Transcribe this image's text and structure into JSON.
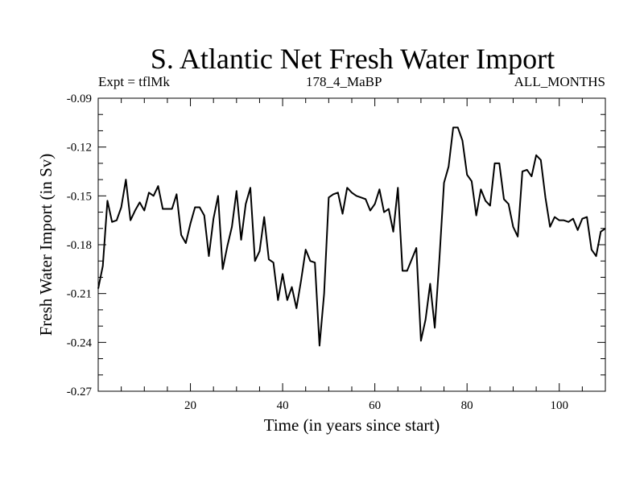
{
  "chart_data": {
    "type": "line",
    "title": "S. Atlantic Net Fresh Water Import",
    "subtitle_left": "Expt = tflMk",
    "subtitle_center": "178_4_MaBP",
    "subtitle_right": "ALL_MONTHS",
    "xlabel": "Time (in years since start)",
    "ylabel": "Fresh Water Import (in Sv)",
    "xlim": [
      0,
      110
    ],
    "ylim": [
      -0.27,
      -0.09
    ],
    "x_ticks": [
      20,
      40,
      60,
      80,
      100
    ],
    "x_tick_labels": [
      "20",
      "40",
      "60",
      "80",
      "100"
    ],
    "y_ticks": [
      -0.27,
      -0.24,
      -0.21,
      -0.18,
      -0.15,
      -0.12,
      -0.09
    ],
    "y_tick_labels": [
      "-0.27",
      "-0.24",
      "-0.21",
      "-0.18",
      "-0.15",
      "-0.12",
      "-0.09"
    ],
    "grid": false,
    "series": [
      {
        "name": "Fresh Water Import",
        "x": [
          0,
          1,
          2,
          3,
          4,
          5,
          6,
          7,
          8,
          9,
          10,
          11,
          12,
          13,
          14,
          15,
          16,
          17,
          18,
          19,
          20,
          21,
          22,
          23,
          24,
          25,
          26,
          27,
          28,
          29,
          30,
          31,
          32,
          33,
          34,
          35,
          36,
          37,
          38,
          39,
          40,
          41,
          42,
          43,
          44,
          45,
          46,
          47,
          48,
          49,
          50,
          51,
          52,
          53,
          54,
          55,
          56,
          57,
          58,
          59,
          60,
          61,
          62,
          63,
          64,
          65,
          66,
          67,
          68,
          69,
          70,
          71,
          72,
          73,
          74,
          75,
          76,
          77,
          78,
          79,
          80,
          81,
          82,
          83,
          84,
          85,
          86,
          87,
          88,
          89,
          90,
          91,
          92,
          93,
          94,
          95,
          96,
          97,
          98,
          99,
          100,
          101,
          102,
          103,
          104,
          105,
          106,
          107,
          108,
          109,
          110
        ],
        "y": [
          -0.207,
          -0.193,
          -0.153,
          -0.166,
          -0.165,
          -0.157,
          -0.14,
          -0.165,
          -0.159,
          -0.154,
          -0.159,
          -0.148,
          -0.15,
          -0.144,
          -0.158,
          -0.158,
          -0.158,
          -0.149,
          -0.174,
          -0.179,
          -0.167,
          -0.157,
          -0.157,
          -0.162,
          -0.187,
          -0.164,
          -0.15,
          -0.195,
          -0.181,
          -0.169,
          -0.147,
          -0.177,
          -0.155,
          -0.145,
          -0.19,
          -0.184,
          -0.163,
          -0.189,
          -0.191,
          -0.214,
          -0.198,
          -0.214,
          -0.206,
          -0.219,
          -0.202,
          -0.183,
          -0.19,
          -0.191,
          -0.242,
          -0.21,
          -0.151,
          -0.149,
          -0.148,
          -0.161,
          -0.145,
          -0.148,
          -0.15,
          -0.151,
          -0.152,
          -0.159,
          -0.155,
          -0.146,
          -0.16,
          -0.158,
          -0.172,
          -0.145,
          -0.196,
          -0.196,
          -0.189,
          -0.182,
          -0.239,
          -0.226,
          -0.204,
          -0.231,
          -0.189,
          -0.142,
          -0.132,
          -0.108,
          -0.108,
          -0.116,
          -0.137,
          -0.141,
          -0.162,
          -0.146,
          -0.153,
          -0.156,
          -0.13,
          -0.13,
          -0.152,
          -0.155,
          -0.169,
          -0.175,
          -0.135,
          -0.134,
          -0.138,
          -0.125,
          -0.128,
          -0.151,
          -0.169,
          -0.163,
          -0.165,
          -0.165,
          -0.166,
          -0.164,
          -0.171,
          -0.164,
          -0.163,
          -0.183,
          -0.187,
          -0.172,
          -0.17
        ]
      }
    ]
  }
}
